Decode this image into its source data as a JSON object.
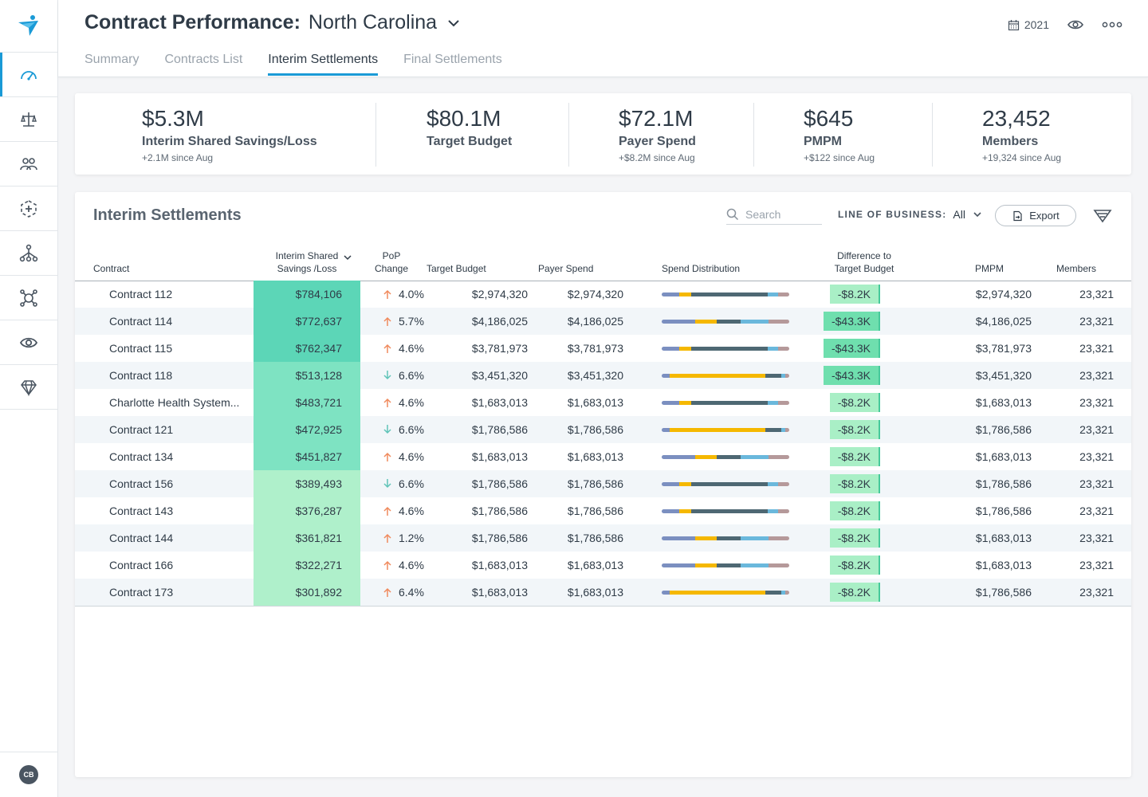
{
  "header": {
    "title": "Contract Performance:",
    "subtitle": "North Carolina",
    "year": "2021"
  },
  "tabs": [
    "Summary",
    "Contracts List",
    "Interim Settlements",
    "Final Settlements"
  ],
  "active_tab": 2,
  "user": {
    "initials": "CB"
  },
  "kpis": [
    {
      "value": "$5.3M",
      "label": "Interim Shared Savings/Loss",
      "change": "+2.1M since Aug"
    },
    {
      "value": "$80.1M",
      "label": "Target Budget",
      "change": ""
    },
    {
      "value": "$72.1M",
      "label": "Payer Spend",
      "change": "+$8.2M since Aug"
    },
    {
      "value": "$645",
      "label": "PMPM",
      "change": "+$122 since Aug"
    },
    {
      "value": "23,452",
      "label": "Members",
      "change": "+19,324 since Aug"
    }
  ],
  "table": {
    "title": "Interim Settlements",
    "search_placeholder": "Search",
    "lob_label": "LINE OF BUSINESS:",
    "lob_value": "All",
    "export_label": "Export",
    "headers": {
      "contract": "Contract",
      "savings": "Interim Shared Savings /Loss",
      "pop": "PoP Change",
      "target": "Target Budget",
      "payer": "Payer Spend",
      "dist": "Spend Distribution",
      "diff": "Difference to Target Budget",
      "pmpm": "PMPM",
      "members": "Members"
    },
    "dist_colors": [
      "#7b8fc0",
      "#f5b800",
      "#4e6873",
      "#6ab8dc",
      "#b5999a"
    ],
    "rows": [
      {
        "contract": "Contract 112",
        "savings": "$784,106",
        "savings_shade": "#5cd6b7",
        "pop_dir": "up",
        "pop": "4.0%",
        "target": "$2,974,320",
        "payer": "$2,974,320",
        "dist": [
          14,
          9,
          60,
          8,
          9
        ],
        "diff": "-$8.2K",
        "diff_shade": "#a9efc6",
        "pmpm": "$2,974,320",
        "members": "23,321"
      },
      {
        "contract": "Contract 114",
        "savings": "$772,637",
        "savings_shade": "#5cd6b7",
        "pop_dir": "up",
        "pop": "5.7%",
        "target": "$4,186,025",
        "payer": "$4,186,025",
        "dist": [
          26,
          17,
          19,
          22,
          16
        ],
        "diff": "-$43.3K",
        "diff_shade": "#6fdfae",
        "pmpm": "$4,186,025",
        "members": "23,321"
      },
      {
        "contract": "Contract 115",
        "savings": "$762,347",
        "savings_shade": "#5cd6b7",
        "pop_dir": "up",
        "pop": "4.6%",
        "target": "$3,781,973",
        "payer": "$3,781,973",
        "dist": [
          14,
          9,
          60,
          8,
          9
        ],
        "diff": "-$43.3K",
        "diff_shade": "#6fdfae",
        "pmpm": "$3,781,973",
        "members": "23,321"
      },
      {
        "contract": "Contract 118",
        "savings": "$513,128",
        "savings_shade": "#7ee3c2",
        "pop_dir": "down",
        "pop": "6.6%",
        "target": "$3,451,320",
        "payer": "$3,451,320",
        "dist": [
          6,
          75,
          13,
          3,
          3
        ],
        "diff": "-$43.3K",
        "diff_shade": "#6fdfae",
        "pmpm": "$3,451,320",
        "members": "23,321"
      },
      {
        "contract": "Charlotte Health System...",
        "savings": "$483,721",
        "savings_shade": "#7ee3c2",
        "pop_dir": "up",
        "pop": "4.6%",
        "target": "$1,683,013",
        "payer": "$1,683,013",
        "dist": [
          14,
          9,
          60,
          8,
          9
        ],
        "diff": "-$8.2K",
        "diff_shade": "#a9efc6",
        "pmpm": "$1,683,013",
        "members": "23,321"
      },
      {
        "contract": "Contract 121",
        "savings": "$472,925",
        "savings_shade": "#7ee3c2",
        "pop_dir": "down",
        "pop": "6.6%",
        "target": "$1,786,586",
        "payer": "$1,786,586",
        "dist": [
          6,
          75,
          13,
          3,
          3
        ],
        "diff": "-$8.2K",
        "diff_shade": "#a9efc6",
        "pmpm": "$1,786,586",
        "members": "23,321"
      },
      {
        "contract": "Contract 134",
        "savings": "$451,827",
        "savings_shade": "#7ee3c2",
        "pop_dir": "up",
        "pop": "4.6%",
        "target": "$1,683,013",
        "payer": "$1,683,013",
        "dist": [
          26,
          17,
          19,
          22,
          16
        ],
        "diff": "-$8.2K",
        "diff_shade": "#a9efc6",
        "pmpm": "$1,683,013",
        "members": "23,321"
      },
      {
        "contract": "Contract 156",
        "savings": "$389,493",
        "savings_shade": "#aff0cb",
        "pop_dir": "down",
        "pop": "6.6%",
        "target": "$1,786,586",
        "payer": "$1,786,586",
        "dist": [
          14,
          9,
          60,
          8,
          9
        ],
        "diff": "-$8.2K",
        "diff_shade": "#a9efc6",
        "pmpm": "$1,786,586",
        "members": "23,321"
      },
      {
        "contract": "Contract 143",
        "savings": "$376,287",
        "savings_shade": "#aff0cb",
        "pop_dir": "up",
        "pop": "4.6%",
        "target": "$1,786,586",
        "payer": "$1,786,586",
        "dist": [
          14,
          9,
          60,
          8,
          9
        ],
        "diff": "-$8.2K",
        "diff_shade": "#a9efc6",
        "pmpm": "$1,786,586",
        "members": "23,321"
      },
      {
        "contract": "Contract 144",
        "savings": "$361,821",
        "savings_shade": "#aff0cb",
        "pop_dir": "up",
        "pop": "1.2%",
        "target": "$1,786,586",
        "payer": "$1,786,586",
        "dist": [
          26,
          17,
          19,
          22,
          16
        ],
        "diff": "-$8.2K",
        "diff_shade": "#a9efc6",
        "pmpm": "$1,683,013",
        "members": "23,321"
      },
      {
        "contract": "Contract 166",
        "savings": "$322,271",
        "savings_shade": "#aff0cb",
        "pop_dir": "up",
        "pop": "4.6%",
        "target": "$1,683,013",
        "payer": "$1,683,013",
        "dist": [
          26,
          17,
          19,
          22,
          16
        ],
        "diff": "-$8.2K",
        "diff_shade": "#a9efc6",
        "pmpm": "$1,683,013",
        "members": "23,321"
      },
      {
        "contract": "Contract 173",
        "savings": "$301,892",
        "savings_shade": "#aff0cb",
        "pop_dir": "up",
        "pop": "6.4%",
        "target": "$1,683,013",
        "payer": "$1,683,013",
        "dist": [
          6,
          75,
          13,
          3,
          3
        ],
        "diff": "-$8.2K",
        "diff_shade": "#a9efc6",
        "pmpm": "$1,786,586",
        "members": "23,321"
      }
    ]
  },
  "colors": {
    "accent": "#1a9ad6",
    "up_arrow": "#f08a5d",
    "down_arrow": "#5fc4b8"
  }
}
